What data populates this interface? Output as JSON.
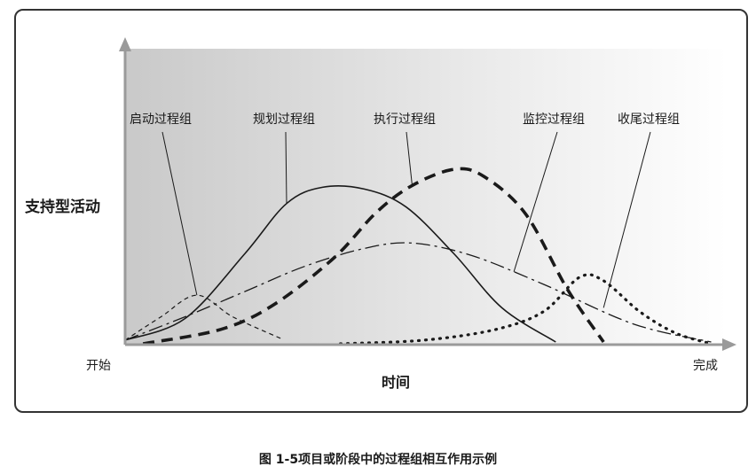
{
  "chart_data": {
    "type": "line",
    "title": "",
    "ylabel": "支持型活动",
    "xlabel": "时间",
    "x_start_label": "开始",
    "x_end_label": "完成",
    "grid": false,
    "background": "gradient-grey-to-white",
    "series": [
      {
        "name": "启动过程组",
        "style": "dashed-thin",
        "points": [
          [
            0,
            0.02
          ],
          [
            0.06,
            0.15
          ],
          [
            0.12,
            0.27
          ],
          [
            0.18,
            0.15
          ],
          [
            0.26,
            0.03
          ]
        ]
      },
      {
        "name": "规划过程组",
        "style": "solid",
        "points": [
          [
            0,
            0.02
          ],
          [
            0.1,
            0.14
          ],
          [
            0.2,
            0.5
          ],
          [
            0.27,
            0.78
          ],
          [
            0.33,
            0.87
          ],
          [
            0.4,
            0.86
          ],
          [
            0.47,
            0.76
          ],
          [
            0.55,
            0.5
          ],
          [
            0.63,
            0.2
          ],
          [
            0.72,
            0.01
          ]
        ]
      },
      {
        "name": "执行过程组",
        "style": "dashed-thick",
        "points": [
          [
            0.03,
            0.0
          ],
          [
            0.16,
            0.08
          ],
          [
            0.25,
            0.22
          ],
          [
            0.35,
            0.48
          ],
          [
            0.42,
            0.73
          ],
          [
            0.48,
            0.88
          ],
          [
            0.55,
            0.97
          ],
          [
            0.6,
            0.93
          ],
          [
            0.67,
            0.72
          ],
          [
            0.74,
            0.3
          ],
          [
            0.8,
            0.01
          ]
        ]
      },
      {
        "name": "监控过程组",
        "style": "dash-dot",
        "points": [
          [
            0,
            0.02
          ],
          [
            0.1,
            0.15
          ],
          [
            0.2,
            0.29
          ],
          [
            0.3,
            0.43
          ],
          [
            0.4,
            0.53
          ],
          [
            0.48,
            0.56
          ],
          [
            0.58,
            0.49
          ],
          [
            0.7,
            0.33
          ],
          [
            0.85,
            0.11
          ],
          [
            0.98,
            0.01
          ]
        ]
      },
      {
        "name": "收尾过程组",
        "style": "dotted",
        "points": [
          [
            0.36,
            0.0
          ],
          [
            0.5,
            0.02
          ],
          [
            0.62,
            0.08
          ],
          [
            0.7,
            0.18
          ],
          [
            0.76,
            0.37
          ],
          [
            0.8,
            0.35
          ],
          [
            0.86,
            0.18
          ],
          [
            0.92,
            0.06
          ],
          [
            0.98,
            0.0
          ]
        ]
      }
    ],
    "annotations": [
      {
        "series": "启动过程组",
        "anchor": [
          0.12,
          0.27
        ]
      },
      {
        "series": "规划过程组",
        "anchor": [
          0.27,
          0.78
        ]
      },
      {
        "series": "执行过程组",
        "anchor": [
          0.48,
          0.88
        ]
      },
      {
        "series": "监控过程组",
        "anchor": [
          0.65,
          0.4
        ]
      },
      {
        "series": "收尾过程组",
        "anchor": [
          0.8,
          0.2
        ]
      }
    ]
  },
  "caption": "图 1-5项目或阶段中的过程组相互作用示例",
  "colors": {
    "line": "#1a1a1a",
    "bg_dark": "#c9c9c9",
    "bg_light": "#ffffff"
  }
}
